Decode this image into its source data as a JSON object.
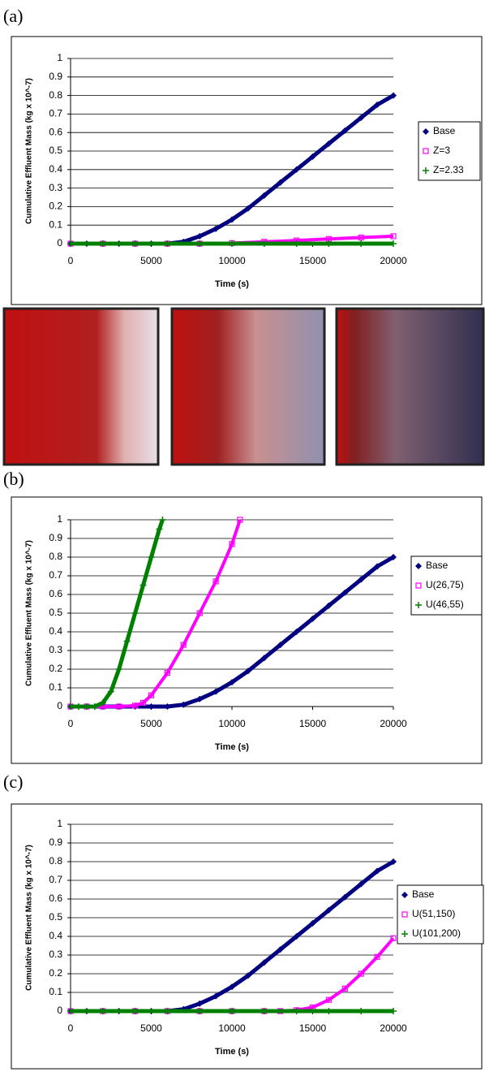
{
  "panel_labels": [
    "(a)",
    "(b)",
    "(c)"
  ],
  "chart_data": [
    {
      "type": "line",
      "x_label": "Time (s)",
      "y_label": "Cumulative Effluent Mass (kg x 10^-7)",
      "xlim": [
        0,
        20000
      ],
      "xticks": [
        0,
        5000,
        10000,
        15000,
        20000
      ],
      "ylim": [
        0,
        1
      ],
      "yticks": [
        0,
        0.1,
        0.2,
        0.3,
        0.4,
        0.5,
        0.6,
        0.7,
        0.8,
        0.9,
        1
      ],
      "grid": true,
      "legend": "right",
      "series": [
        {
          "name": "Base",
          "color": "#000080",
          "marker": "diamond",
          "x": [
            0,
            1000,
            2000,
            3000,
            4000,
            5000,
            6000,
            7000,
            8000,
            9000,
            10000,
            11000,
            12000,
            13000,
            14000,
            15000,
            16000,
            17000,
            18000,
            19000,
            20000
          ],
          "values": [
            0,
            0,
            0,
            0,
            0,
            0,
            0,
            0.01,
            0.04,
            0.08,
            0.13,
            0.19,
            0.26,
            0.33,
            0.4,
            0.47,
            0.54,
            0.61,
            0.68,
            0.75,
            0.8
          ]
        },
        {
          "name": "Z=3",
          "color": "#ff00ff",
          "marker": "square",
          "x": [
            0,
            2000,
            4000,
            6000,
            8000,
            10000,
            12000,
            14000,
            16000,
            18000,
            20000
          ],
          "values": [
            0,
            0,
            0,
            0,
            0,
            0.003,
            0.01,
            0.017,
            0.025,
            0.033,
            0.04
          ]
        },
        {
          "name": "Z=2.33",
          "color": "#008000",
          "marker": "plus",
          "x": [
            0,
            2000,
            4000,
            6000,
            8000,
            10000,
            12000,
            14000,
            16000,
            18000,
            20000
          ],
          "values": [
            0,
            0,
            0,
            0,
            0,
            0,
            0,
            0,
            0,
            0,
            0
          ]
        }
      ]
    },
    {
      "type": "line",
      "x_label": "Time (s)",
      "y_label": "Cumulative Effluent Mass (kg x 10^-7)",
      "xlim": [
        0,
        20000
      ],
      "xticks": [
        0,
        5000,
        10000,
        15000,
        20000
      ],
      "ylim": [
        0,
        1
      ],
      "yticks": [
        0,
        0.1,
        0.2,
        0.3,
        0.4,
        0.5,
        0.6,
        0.7,
        0.8,
        0.9,
        1
      ],
      "grid": true,
      "legend": "right",
      "series": [
        {
          "name": "Base",
          "color": "#000080",
          "marker": "diamond",
          "x": [
            0,
            1000,
            2000,
            3000,
            4000,
            5000,
            6000,
            7000,
            8000,
            9000,
            10000,
            11000,
            12000,
            13000,
            14000,
            15000,
            16000,
            17000,
            18000,
            19000,
            20000
          ],
          "values": [
            0,
            0,
            0,
            0,
            0,
            0,
            0,
            0.01,
            0.04,
            0.08,
            0.13,
            0.19,
            0.26,
            0.33,
            0.4,
            0.47,
            0.54,
            0.61,
            0.68,
            0.75,
            0.8
          ]
        },
        {
          "name": "U(26,75)",
          "color": "#ff00ff",
          "marker": "square",
          "x": [
            0,
            1000,
            2000,
            3000,
            4000,
            4500,
            5000,
            6000,
            7000,
            8000,
            9000,
            10000,
            10500
          ],
          "values": [
            0,
            0,
            0,
            0,
            0.005,
            0.02,
            0.06,
            0.18,
            0.33,
            0.5,
            0.67,
            0.87,
            1
          ]
        },
        {
          "name": "U(46,55)",
          "color": "#008000",
          "marker": "plus",
          "x": [
            0,
            500,
            1000,
            1500,
            2000,
            2500,
            3000,
            3500,
            4000,
            4500,
            5000,
            5500,
            5700
          ],
          "values": [
            0,
            0,
            0,
            0,
            0.02,
            0.08,
            0.2,
            0.35,
            0.5,
            0.65,
            0.8,
            0.95,
            1
          ]
        }
      ]
    },
    {
      "type": "line",
      "x_label": "Time (s)",
      "y_label": "Cumulative Effluent Mass (kg x 10^-7)",
      "xlim": [
        0,
        20000
      ],
      "xticks": [
        0,
        5000,
        10000,
        15000,
        20000
      ],
      "ylim": [
        0,
        1
      ],
      "yticks": [
        0,
        0.1,
        0.2,
        0.3,
        0.4,
        0.5,
        0.6,
        0.7,
        0.8,
        0.9,
        1
      ],
      "grid": true,
      "legend": "right",
      "series": [
        {
          "name": "Base",
          "color": "#000080",
          "marker": "diamond",
          "x": [
            0,
            1000,
            2000,
            3000,
            4000,
            5000,
            6000,
            7000,
            8000,
            9000,
            10000,
            11000,
            12000,
            13000,
            14000,
            15000,
            16000,
            17000,
            18000,
            19000,
            20000
          ],
          "values": [
            0,
            0,
            0,
            0,
            0,
            0,
            0,
            0.01,
            0.04,
            0.08,
            0.13,
            0.19,
            0.26,
            0.33,
            0.4,
            0.47,
            0.54,
            0.61,
            0.68,
            0.75,
            0.8
          ]
        },
        {
          "name": "U(51,150)",
          "color": "#ff00ff",
          "marker": "square",
          "x": [
            0,
            2000,
            4000,
            6000,
            8000,
            10000,
            12000,
            13000,
            14000,
            15000,
            16000,
            17000,
            18000,
            19000,
            20000
          ],
          "values": [
            0,
            0,
            0,
            0,
            0,
            0,
            0,
            0,
            0.005,
            0.02,
            0.06,
            0.12,
            0.2,
            0.29,
            0.39
          ]
        },
        {
          "name": "U(101,200)",
          "color": "#008000",
          "marker": "plus",
          "x": [
            0,
            2000,
            4000,
            6000,
            8000,
            10000,
            12000,
            14000,
            16000,
            18000,
            20000
          ],
          "values": [
            0,
            0,
            0,
            0,
            0,
            0,
            0,
            0,
            0,
            0,
            0
          ]
        }
      ]
    }
  ]
}
